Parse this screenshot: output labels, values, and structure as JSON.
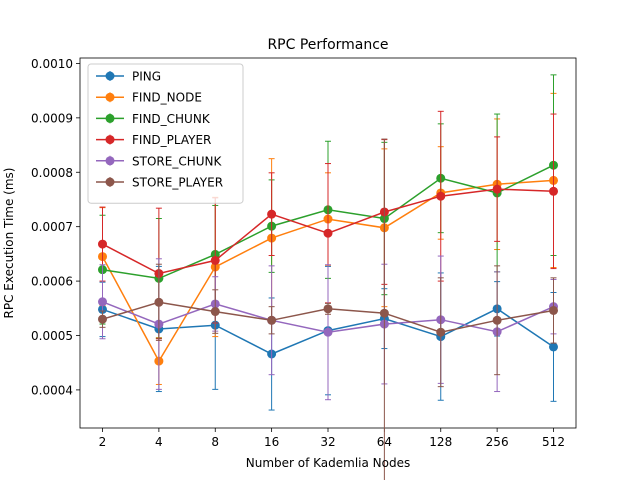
{
  "chart_data": {
    "type": "line",
    "title": "RPC Performance",
    "xlabel": "Number of Kademlia Nodes",
    "ylabel": "RPC Execution Time (ms)",
    "categories": [
      "2",
      "4",
      "8",
      "16",
      "32",
      "64",
      "128",
      "256",
      "512"
    ],
    "ylim": [
      0.00033,
      0.00101
    ],
    "yticks": [
      0.0004,
      0.0005,
      0.0006,
      0.0007,
      0.0008,
      0.0009,
      0.001
    ],
    "ytick_labels": [
      "0.0004",
      "0.0005",
      "0.0006",
      "0.0007",
      "0.0008",
      "0.0009",
      "0.0010"
    ],
    "legend_position": "upper-left",
    "grid": false,
    "series": [
      {
        "name": "PING",
        "color": "#1f77b4",
        "values": [
          0.000548,
          0.000512,
          0.000519,
          0.000466,
          0.000509,
          0.000531,
          0.000498,
          0.000549,
          0.000479
        ],
        "errors": [
          5e-05,
          0.000115,
          0.000118,
          0.000103,
          0.000118,
          5.5e-05,
          0.000117,
          5e-05,
          0.0001
        ]
      },
      {
        "name": "FIND_NODE",
        "color": "#ff7f0e",
        "values": [
          0.000645,
          0.000453,
          0.000626,
          0.000679,
          0.000714,
          0.000698,
          0.000762,
          0.000778,
          0.000785
        ],
        "errors": [
          9e-05,
          4.3e-05,
          0.000128,
          0.000146,
          8.5e-05,
          0.000145,
          8.5e-05,
          0.00012,
          0.00016
        ]
      },
      {
        "name": "FIND_CHUNK",
        "color": "#2ca02c",
        "values": [
          0.000621,
          0.000605,
          0.000649,
          0.000701,
          0.000731,
          0.000715,
          0.000789,
          0.000762,
          0.000813
        ],
        "errors": [
          0.0001,
          0.00011,
          9e-05,
          8.5e-05,
          0.000126,
          0.00014,
          0.0001,
          0.000145,
          0.000166
        ]
      },
      {
        "name": "FIND_PLAYER",
        "color": "#d62728",
        "values": [
          0.000668,
          0.000614,
          0.000638,
          0.000723,
          0.000688,
          0.000727,
          0.000756,
          0.000769,
          0.000765
        ],
        "errors": [
          6.8e-05,
          0.00012,
          0.000115,
          7.6e-05,
          0.000128,
          0.000133,
          0.000156,
          9.6e-05,
          0.000142
        ]
      },
      {
        "name": "STORE_CHUNK",
        "color": "#9467bd",
        "values": [
          0.000562,
          0.000521,
          0.000558,
          0.000528,
          0.000506,
          0.000521,
          0.000529,
          0.000507,
          0.000553
        ],
        "errors": [
          6.8e-05,
          0.00012,
          5e-05,
          0.0001,
          0.000124,
          0.00011,
          0.000117,
          0.00011,
          5e-05
        ]
      },
      {
        "name": "STORE_PLAYER",
        "color": "#8c564b",
        "values": [
          0.00053,
          0.000561,
          0.000544,
          0.000528,
          0.000549,
          0.000541,
          0.000506,
          0.000528,
          0.000546
        ],
        "errors": [
          1.5e-05,
          7e-05,
          4e-05,
          2.5e-05,
          1e-05,
          0.00032,
          0.0001,
          0.0001,
          6e-05
        ]
      }
    ]
  }
}
